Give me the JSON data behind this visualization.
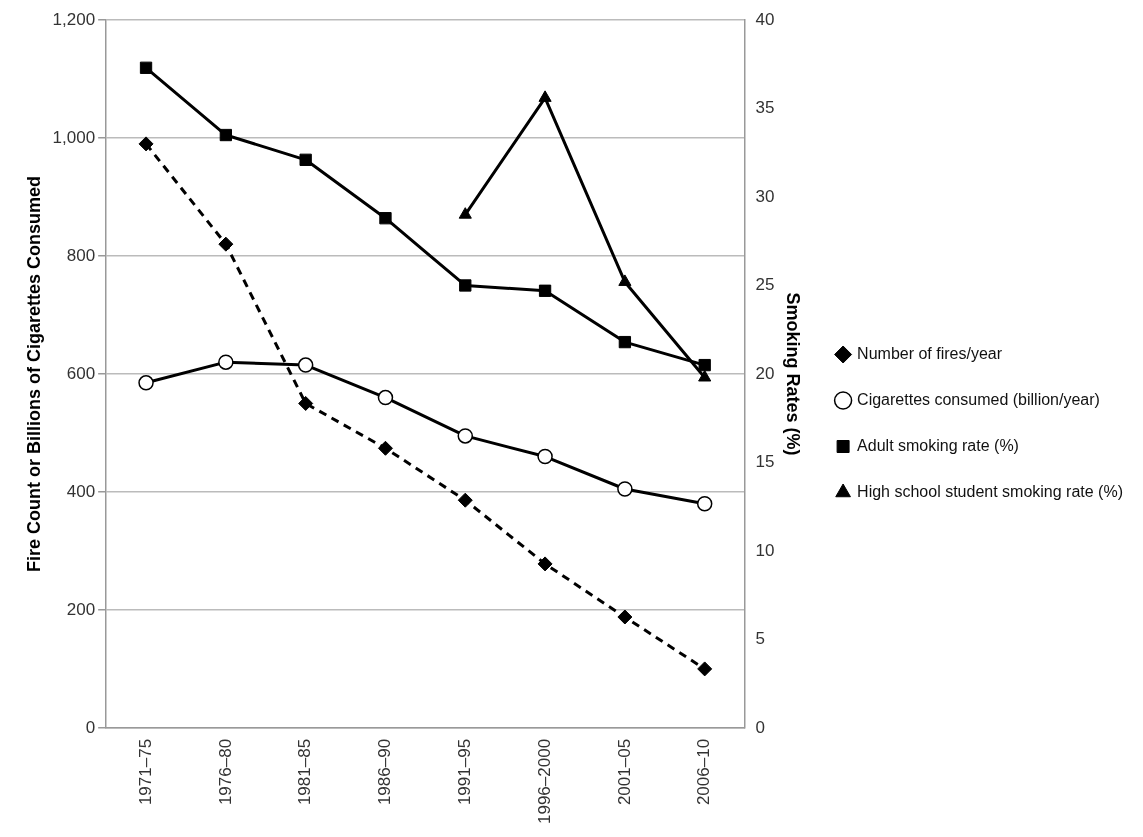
{
  "chart_data": {
    "type": "line",
    "ylabel": "Fire Count or Billions of Cigarettes Consumed",
    "y2label": "Smoking Rates (%)",
    "categories": [
      "1971–75",
      "1976–80",
      "1981–85",
      "1986–90",
      "1991–95",
      "1996–2000",
      "2001–05",
      "2006–10"
    ],
    "series": [
      {
        "name": "Number of fires/year",
        "color": "#000000",
        "marker": "diamond",
        "line_style": "dashed",
        "values": [
          990,
          820,
          550,
          474,
          386,
          278,
          188,
          100
        ]
      },
      {
        "name": "Cigarettes consumed (billion/year)",
        "color": "#000000",
        "marker": "circle",
        "values": [
          585,
          620,
          615,
          560,
          495,
          460,
          405,
          380
        ]
      },
      {
        "name": "Adult smoking rate (%)",
        "color": "#000000",
        "marker": "square",
        "axis": "y2",
        "values": [
          37.3,
          33.5,
          32.1,
          28.8,
          25.0,
          24.7,
          21.8,
          20.5
        ]
      },
      {
        "name": "High school student smoking rate (%)",
        "color": "#000000",
        "marker": "triangle",
        "axis": "y2",
        "values": [
          null,
          null,
          null,
          null,
          29.0,
          35.6,
          25.2,
          19.8
        ]
      }
    ],
    "ylim": [
      0,
      1200
    ],
    "yticks": [
      {
        "value": 0,
        "label": "0"
      },
      {
        "value": 200,
        "label": "200"
      },
      {
        "value": 400,
        "label": "400"
      },
      {
        "value": 600,
        "label": "600"
      },
      {
        "value": 800,
        "label": "800"
      },
      {
        "value": 1000,
        "label": "1,000"
      },
      {
        "value": 1200,
        "label": "1,200"
      }
    ],
    "y2lim": [
      0,
      40
    ],
    "y2ticks": [
      0,
      5,
      10,
      15,
      20,
      25,
      30,
      35,
      40
    ],
    "grid": "y",
    "legend": "right"
  }
}
